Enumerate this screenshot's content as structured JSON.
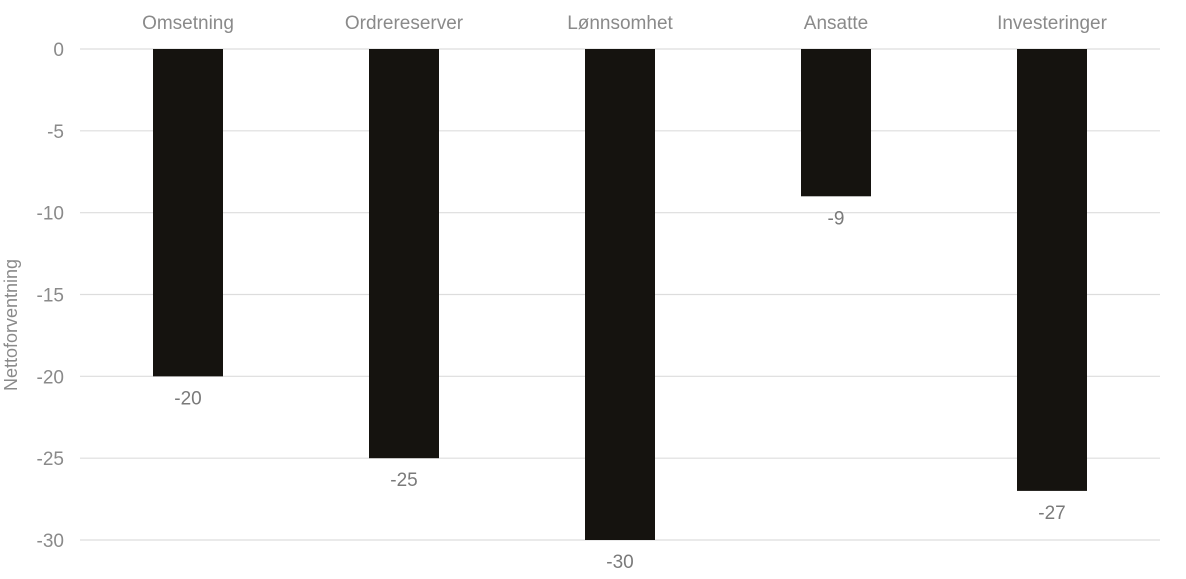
{
  "chart_data": {
    "type": "bar",
    "orientation": "vertical",
    "categories": [
      "Omsetning",
      "Ordrereserver",
      "Lønnsomhet",
      "Ansatte",
      "Investeringer"
    ],
    "values": [
      -20,
      -25,
      -30,
      -9,
      -27
    ],
    "data_labels": [
      "-20",
      "-25",
      "-30",
      "-9",
      "-27"
    ],
    "title": "",
    "xlabel": "",
    "ylabel": "Nettoforventning",
    "ylim": [
      -30,
      0
    ],
    "yticks": [
      0,
      -5,
      -10,
      -15,
      -20,
      -25,
      -30
    ],
    "ytick_labels": [
      "0",
      "-5",
      "-10",
      "-15",
      "-20",
      "-25",
      "-30"
    ],
    "category_axis_position": "top",
    "grid": true,
    "legend": "none",
    "colors": {
      "bar": "#15130f",
      "grid": "#dddddd",
      "text": "#8a8a8a"
    }
  }
}
